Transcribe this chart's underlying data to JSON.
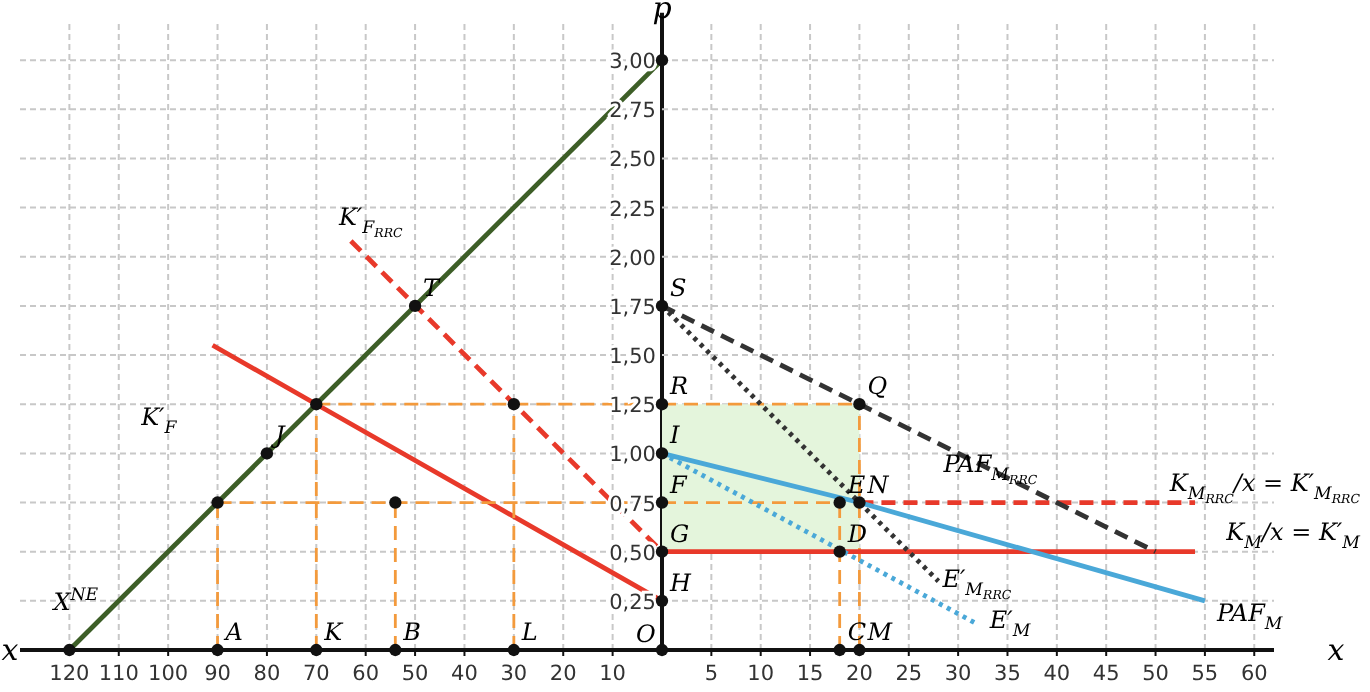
{
  "chart_data": [
    {
      "type": "line",
      "xlabel": "x",
      "ylabel": "p",
      "xlim": [
        130,
        0
      ],
      "ylim": [
        0,
        3.2
      ],
      "xticks": [
        120,
        110,
        100,
        90,
        80,
        70,
        60,
        50,
        40,
        30,
        20,
        10
      ],
      "yticks": [
        {
          "value": 0.25,
          "label": "0,25"
        },
        {
          "value": 0.5,
          "label": "0,50"
        },
        {
          "value": 0.75,
          "label": "0,75"
        },
        {
          "value": 1,
          "label": "1,00"
        },
        {
          "value": 1.25,
          "label": "1,25"
        },
        {
          "value": 1.5,
          "label": "1,50"
        },
        {
          "value": 1.75,
          "label": "1,75"
        },
        {
          "value": 2,
          "label": "2,00"
        },
        {
          "value": 2.25,
          "label": "2,25"
        },
        {
          "value": 2.5,
          "label": "2,50"
        },
        {
          "value": 2.75,
          "label": "2,75"
        },
        {
          "value": 3,
          "label": "3,00"
        }
      ],
      "grid": true,
      "series": [
        {
          "name": "X$^{NE}$",
          "color": "#3d5e27",
          "line_style": "solid",
          "x": [
            120,
            0
          ],
          "values": [
            0,
            3
          ]
        },
        {
          "name": "K′$_{F}$",
          "color": "#e8392a",
          "line_style": "solid",
          "x": [
            91,
            70,
            0
          ],
          "values": [
            1.55,
            1.25,
            0.25
          ]
        },
        {
          "name": "K′$_{F}$$_{RRC}$",
          "color": "#e8392a",
          "line_style": "dashed",
          "x": [
            63,
            0
          ],
          "values": [
            2.08,
            0.5
          ]
        },
        {
          "color": "#f39a3c",
          "line_style": "dashed",
          "x": [
            70,
            0
          ],
          "values": [
            1.25,
            1.25
          ]
        },
        {
          "color": "#f39a3c",
          "line_style": "dashed",
          "x": [
            90,
            0
          ],
          "values": [
            0.75,
            0.75
          ]
        },
        {
          "color": "#f39a3c",
          "line_style": "dashed",
          "x": [
            90,
            90
          ],
          "values": [
            0,
            0.75
          ]
        },
        {
          "color": "#f39a3c",
          "line_style": "dashed",
          "x": [
            70,
            70
          ],
          "values": [
            0,
            1.25
          ]
        },
        {
          "color": "#f39a3c",
          "line_style": "dashed",
          "x": [
            54,
            54
          ],
          "values": [
            0,
            0.75
          ]
        },
        {
          "color": "#f39a3c",
          "line_style": "dashed",
          "x": [
            30,
            30
          ],
          "values": [
            0,
            1.25
          ]
        },
        {
          "type": "scatter",
          "marker": "circle",
          "color": "#111111",
          "x": [
            120,
            90,
            70,
            54,
            30,
            90,
            54,
            70,
            30,
            80,
            50
          ],
          "values": [
            0,
            0,
            0,
            0,
            0,
            0.75,
            0.75,
            1.25,
            1.25,
            1,
            1.75
          ]
        }
      ],
      "annotations": [
        {
          "text": "A",
          "x": 90,
          "y": 0
        },
        {
          "text": "K",
          "x": 70,
          "y": 0
        },
        {
          "text": "B",
          "x": 54,
          "y": 0
        },
        {
          "text": "L",
          "x": 30,
          "y": 0
        },
        {
          "text": "J",
          "x": 80,
          "y": 1
        },
        {
          "text": "T",
          "x": 50,
          "y": 1.75
        }
      ]
    },
    {
      "type": "line",
      "xlabel": "x",
      "xlim": [
        0,
        62
      ],
      "ylim": [
        0,
        3.2
      ],
      "tick_labels": "x",
      "xticks": [
        5,
        10,
        15,
        20,
        25,
        30,
        35,
        40,
        45,
        50,
        55,
        60
      ],
      "yticks": [
        0.25,
        0.5,
        0.75,
        1,
        1.25,
        1.5,
        1.75,
        2,
        2.25,
        2.5,
        2.75,
        3
      ],
      "grid": true,
      "series": [
        {
          "color": "#e4f5dc",
          "x": [
            0,
            20
          ],
          "values": [
            null,
            null
          ],
          "lower": [
            0.5,
            0.5
          ],
          "upper": [
            1.25,
            1.25
          ]
        },
        {
          "color": "#f39a3c",
          "line_style": "dashed",
          "x": [
            0,
            20
          ],
          "values": [
            1.25,
            1.25
          ]
        },
        {
          "color": "#f39a3c",
          "line_style": "dashed",
          "x": [
            0,
            18
          ],
          "values": [
            0.75,
            0.75
          ]
        },
        {
          "color": "#f39a3c",
          "line_style": "dashed",
          "x": [
            18,
            18
          ],
          "values": [
            0,
            0.75
          ]
        },
        {
          "color": "#f39a3c",
          "line_style": "dashed",
          "x": [
            20,
            20
          ],
          "values": [
            0,
            1.25
          ]
        },
        {
          "name": "K$_{M}$/x = K′$_{M}$",
          "color": "#e8392a",
          "line_style": "solid",
          "x": [
            0,
            54
          ],
          "values": [
            0.5,
            0.5
          ]
        },
        {
          "name": "K$_{M}$$_{RRC}$/x = K′$_{M}$$_{RRC}$",
          "color": "#e8392a",
          "line_style": "dashed",
          "x": [
            20,
            54
          ],
          "values": [
            0.75,
            0.75
          ]
        },
        {
          "name": "PAF$_{M}$",
          "color": "#4aa8d8",
          "line_style": "solid",
          "x": [
            0,
            20,
            55
          ],
          "values": [
            1,
            0.75,
            0.25
          ]
        },
        {
          "name": "E′$_{M}$",
          "color": "#4aa8d8",
          "line_style": "dotted",
          "x": [
            0,
            32
          ],
          "values": [
            1,
            0.13
          ]
        },
        {
          "name": "E′$_{M}$$_{RRC}$",
          "color": "#333333",
          "line_style": "dotted",
          "x": [
            0,
            28
          ],
          "values": [
            1.75,
            0.35
          ]
        },
        {
          "name": "PAF$_{M}$$_{RRC}$",
          "color": "#333333",
          "line_style": "dashed",
          "x": [
            0,
            20,
            50
          ],
          "values": [
            1.75,
            1.25,
            0.5
          ]
        },
        {
          "type": "scatter",
          "marker": "circle",
          "color": "#111111",
          "x": [
            0,
            0,
            0,
            0,
            0,
            0,
            0,
            0,
            18,
            20,
            18,
            18,
            20,
            20
          ],
          "values": [
            0,
            0.25,
            0.5,
            0.75,
            1,
            1.25,
            1.75,
            3,
            0,
            0,
            0.5,
            0.75,
            0.75,
            1.25
          ]
        }
      ],
      "annotations": [
        {
          "text": "O",
          "x": 0,
          "y": 0
        },
        {
          "text": "H",
          "x": 0,
          "y": 0.25
        },
        {
          "text": "G",
          "x": 0,
          "y": 0.5
        },
        {
          "text": "F",
          "x": 0,
          "y": 0.75
        },
        {
          "text": "I",
          "x": 0,
          "y": 1
        },
        {
          "text": "R",
          "x": 0,
          "y": 1.25
        },
        {
          "text": "S",
          "x": 0,
          "y": 1.75
        },
        {
          "text": "C",
          "x": 18,
          "y": 0
        },
        {
          "text": "M",
          "x": 20,
          "y": 0
        },
        {
          "text": "D",
          "x": 18,
          "y": 0.5
        },
        {
          "text": "E",
          "x": 18,
          "y": 0.75
        },
        {
          "text": "N",
          "x": 20,
          "y": 0.75
        },
        {
          "text": "Q",
          "x": 20,
          "y": 1.25
        }
      ]
    }
  ]
}
